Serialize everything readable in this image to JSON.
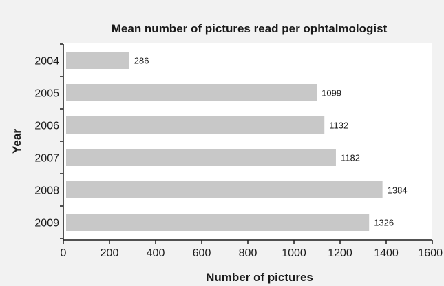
{
  "chart_data": {
    "type": "bar",
    "orientation": "horizontal",
    "title": "Mean number of pictures read per ophtalmologist",
    "xlabel": "Number of pictures",
    "ylabel": "Year",
    "categories": [
      "2004",
      "2005",
      "2006",
      "2007",
      "2008",
      "2009"
    ],
    "values": [
      286,
      1099,
      1132,
      1182,
      1384,
      1326
    ],
    "data_labels": [
      "286",
      "1099",
      "1132",
      "1182",
      "1384",
      "1326"
    ],
    "xlim": [
      0,
      1600
    ],
    "xticks": [
      0,
      200,
      400,
      600,
      800,
      1000,
      1200,
      1400,
      1600
    ],
    "xtick_labels": [
      "0",
      "200",
      "400",
      "600",
      "800",
      "1000",
      "1200",
      "1400",
      "1600"
    ],
    "grid": false,
    "legend": "none",
    "colors": {
      "bar": "#c8c8c8",
      "plot_background": "#ffffff",
      "page_background": "#f2f2f2",
      "axis": "#1a1a1a"
    }
  }
}
